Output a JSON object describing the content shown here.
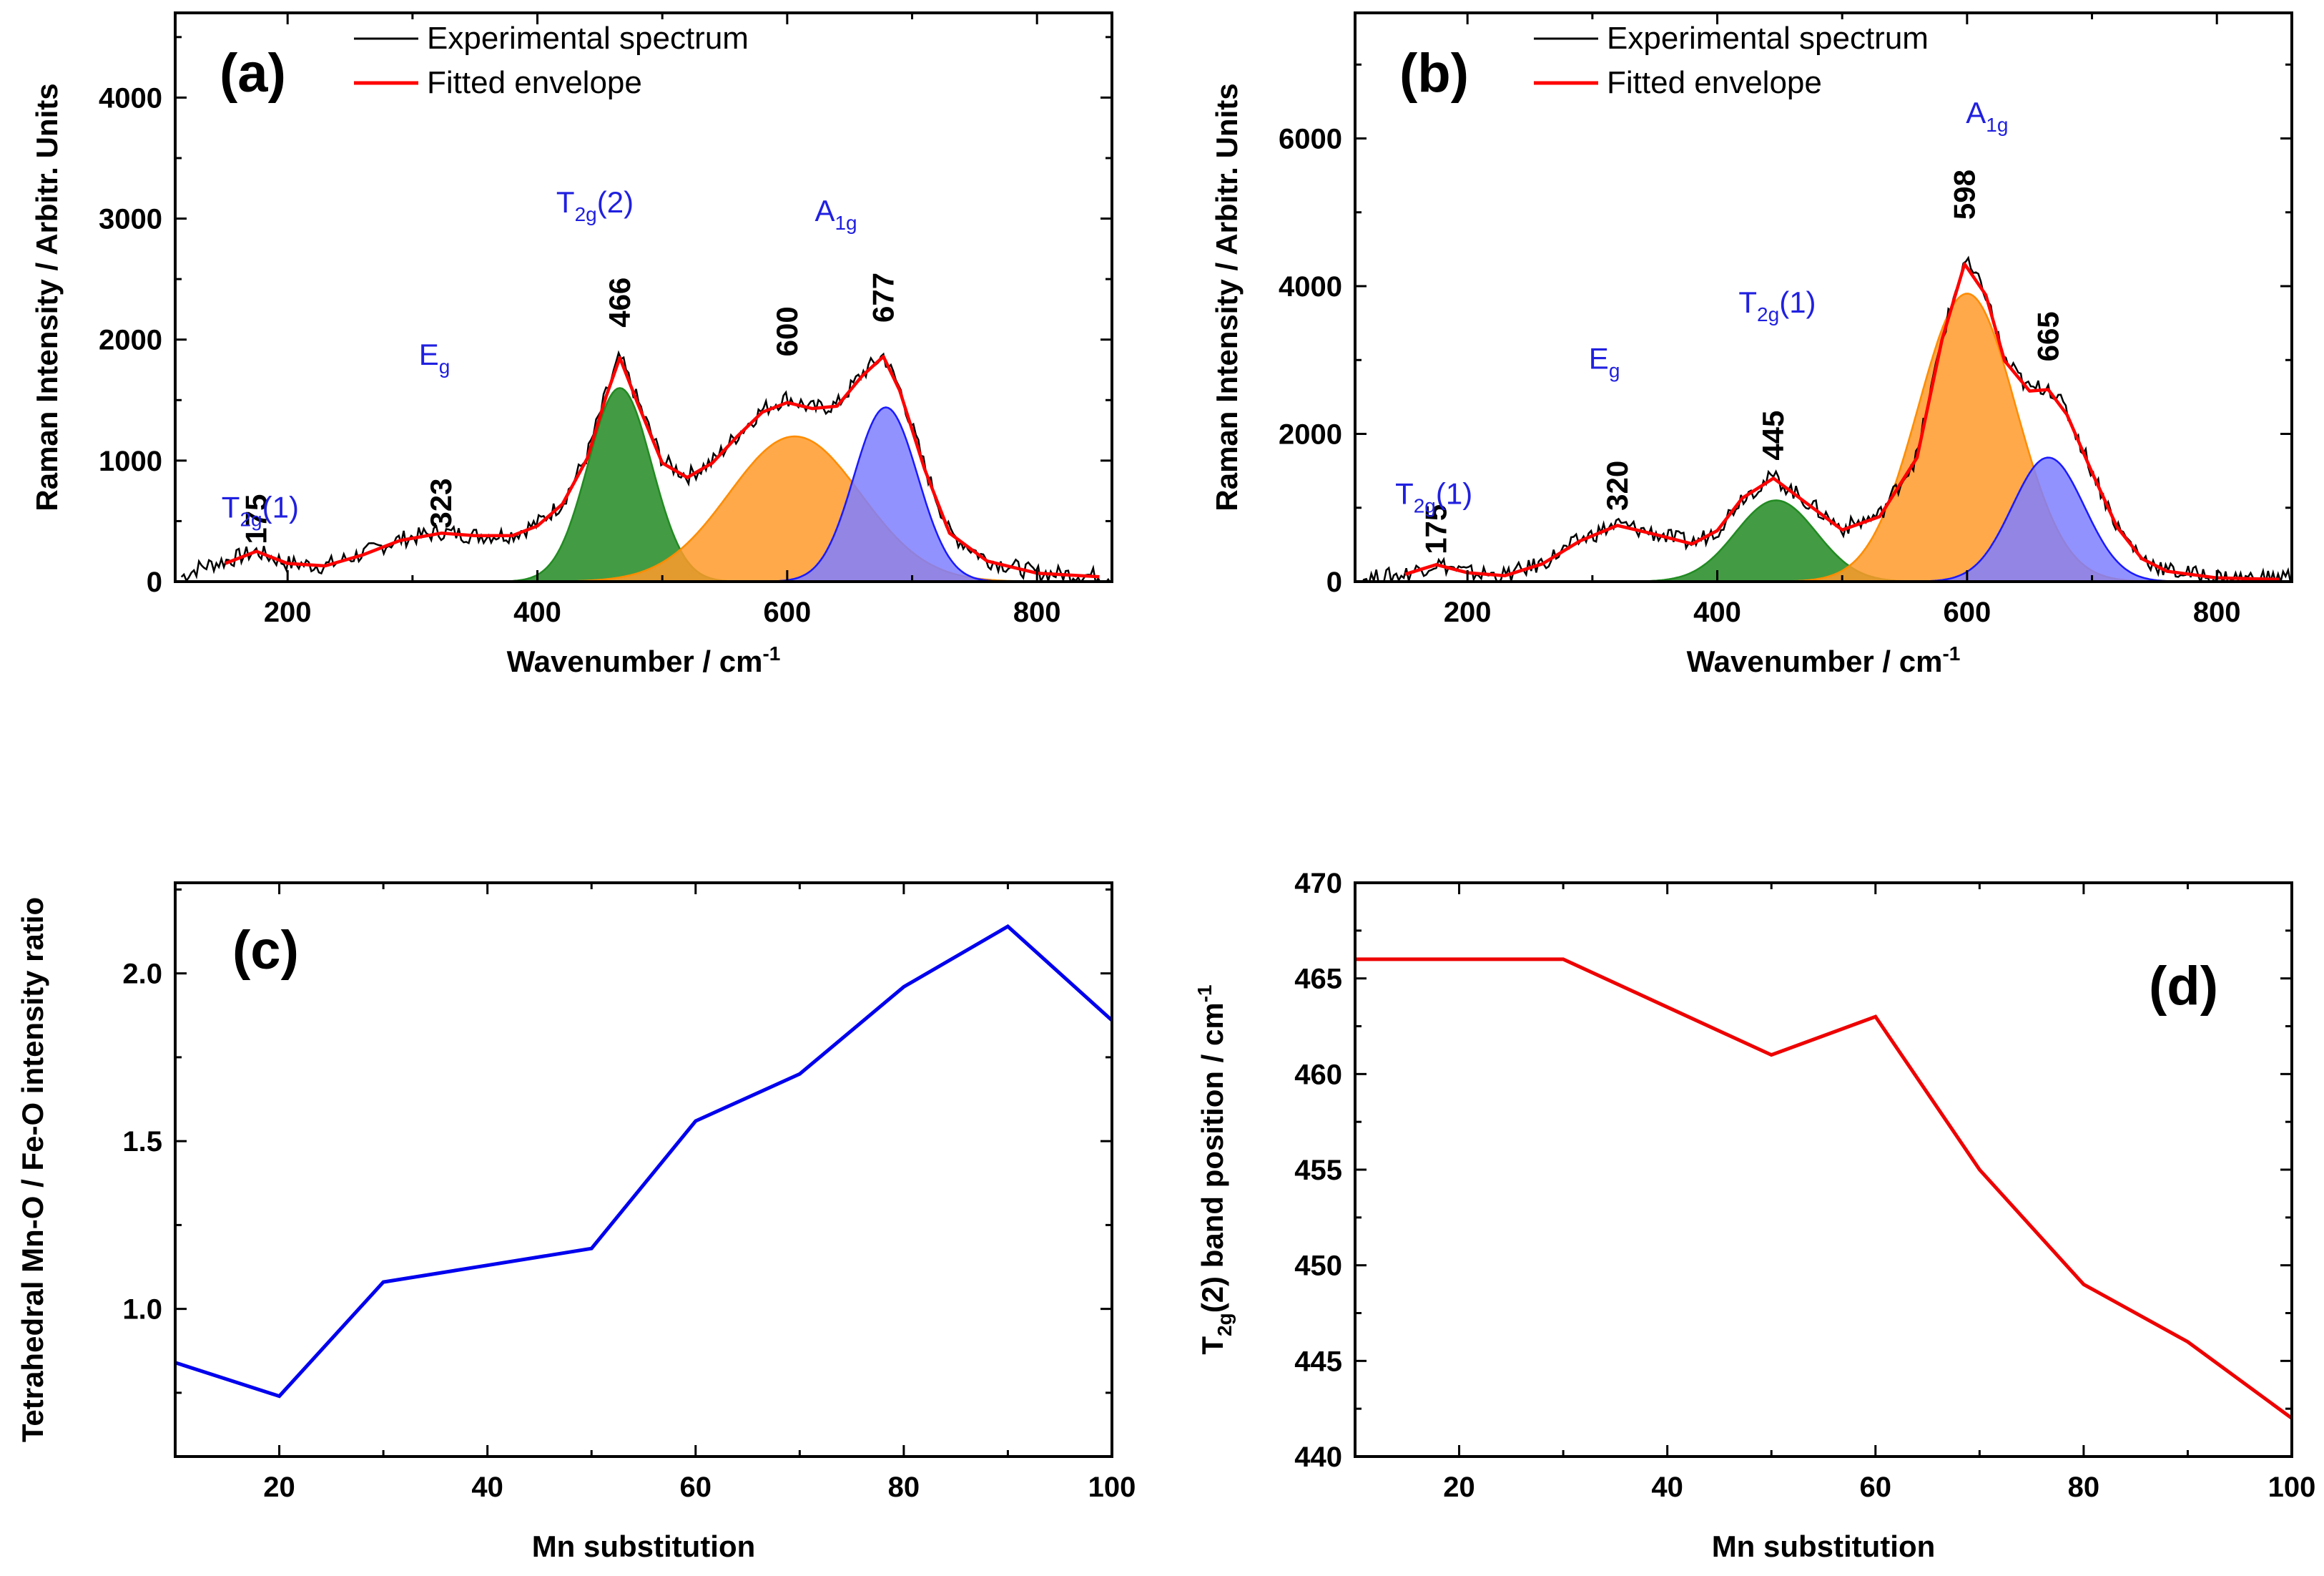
{
  "chart_data": [
    {
      "type": "line",
      "panel": "(a)",
      "xlabel": "Wavenumber / cm",
      "xlabel_sup": "-1",
      "ylabel": "Raman Intensity / Arbitr. Units",
      "xlim": [
        110,
        860
      ],
      "ylim": [
        0,
        4700
      ],
      "xticks": [
        200,
        400,
        600,
        800
      ],
      "yticks": [
        0,
        1000,
        2000,
        3000,
        4000
      ],
      "legend": [
        {
          "label": "Experimental spectrum",
          "color": "#000000"
        },
        {
          "label": "Fitted envelope",
          "color": "#ff0000"
        }
      ],
      "series": [
        {
          "name": "Experimental spectrum",
          "color": "#000000",
          "x": [
            115,
            130,
            150,
            175,
            200,
            230,
            260,
            290,
            323,
            350,
            380,
            400,
            420,
            440,
            455,
            466,
            480,
            500,
            520,
            540,
            560,
            580,
            600,
            620,
            640,
            660,
            677,
            690,
            710,
            730,
            760,
            800,
            830,
            860
          ],
          "y": [
            40,
            120,
            170,
            250,
            150,
            130,
            230,
            350,
            410,
            380,
            390,
            480,
            650,
            1050,
            1550,
            1860,
            1500,
            1000,
            870,
            990,
            1210,
            1420,
            1520,
            1430,
            1460,
            1720,
            1870,
            1600,
            950,
            400,
            180,
            70,
            60,
            40
          ]
        },
        {
          "name": "Fitted envelope",
          "color": "#ff0000",
          "x": [
            150,
            175,
            200,
            230,
            260,
            290,
            323,
            350,
            380,
            400,
            420,
            440,
            455,
            466,
            480,
            500,
            520,
            540,
            560,
            580,
            600,
            620,
            640,
            660,
            677,
            690,
            710,
            730,
            760,
            800,
            850
          ],
          "y": [
            150,
            250,
            150,
            130,
            220,
            340,
            400,
            380,
            380,
            460,
            640,
            1020,
            1530,
            1850,
            1480,
            980,
            860,
            980,
            1200,
            1400,
            1480,
            1430,
            1450,
            1700,
            1860,
            1580,
            930,
            400,
            170,
            70,
            40
          ]
        },
        {
          "name": "T2g(2) component",
          "color": "#228b22",
          "fill": "#228b22",
          "center": 466,
          "amplitude": 1600,
          "width": 30
        },
        {
          "name": "600 component",
          "color": "#ff8c00",
          "fill": "#ff9a2a",
          "center": 606,
          "amplitude": 1200,
          "width": 62
        },
        {
          "name": "A1g component",
          "color": "#1a1aff",
          "fill": "#7f7fff",
          "center": 679,
          "amplitude": 1440,
          "width": 30
        }
      ],
      "peak_labels": [
        "175",
        "323",
        "466",
        "600",
        "677"
      ],
      "peak_positions": [
        175,
        323,
        466,
        600,
        677
      ],
      "mode_labels": [
        {
          "main": "T",
          "sub": "2g",
          "rest": "(1)"
        },
        {
          "main": "E",
          "sub": "g",
          "rest": ""
        },
        {
          "main": "T",
          "sub": "2g",
          "rest": "(2)"
        },
        {
          "main": "A",
          "sub": "1g",
          "rest": ""
        }
      ]
    },
    {
      "type": "line",
      "panel": "(b)",
      "xlabel": "Wavenumber / cm",
      "xlabel_sup": "-1",
      "ylabel": "Raman Intensity / Arbitr. Units",
      "xlim": [
        110,
        860
      ],
      "ylim": [
        0,
        7700
      ],
      "xticks": [
        200,
        400,
        600,
        800
      ],
      "yticks": [
        0,
        2000,
        4000,
        6000
      ],
      "legend": [
        {
          "label": "Experimental spectrum",
          "color": "#000000"
        },
        {
          "label": "Fitted envelope",
          "color": "#ff0000"
        }
      ],
      "series": [
        {
          "name": "Experimental spectrum",
          "color": "#000000",
          "x": [
            115,
            130,
            150,
            175,
            200,
            230,
            260,
            290,
            320,
            350,
            380,
            400,
            420,
            445,
            470,
            500,
            530,
            560,
            580,
            598,
            615,
            630,
            650,
            665,
            680,
            700,
            720,
            740,
            760,
            800,
            830,
            860
          ],
          "y": [
            40,
            60,
            100,
            250,
            120,
            80,
            250,
            560,
            780,
            650,
            520,
            700,
            1150,
            1420,
            1100,
            720,
            900,
            1700,
            3300,
            4350,
            3900,
            3000,
            2600,
            2650,
            2300,
            1500,
            750,
            320,
            150,
            60,
            40,
            70
          ]
        },
        {
          "name": "Fitted envelope",
          "color": "#ff0000",
          "x": [
            150,
            175,
            200,
            230,
            260,
            290,
            320,
            350,
            380,
            400,
            420,
            445,
            470,
            500,
            530,
            560,
            580,
            598,
            615,
            630,
            650,
            665,
            680,
            700,
            720,
            740,
            760,
            800,
            850
          ],
          "y": [
            100,
            230,
            120,
            80,
            240,
            550,
            760,
            640,
            510,
            690,
            1130,
            1400,
            1080,
            700,
            880,
            1680,
            3280,
            4300,
            3880,
            2990,
            2580,
            2600,
            2260,
            1480,
            740,
            310,
            140,
            50,
            30
          ]
        },
        {
          "name": "T2g(1) component",
          "color": "#228b22",
          "fill": "#228b22",
          "center": 447,
          "amplitude": 1100,
          "width": 38
        },
        {
          "name": "A1g component",
          "color": "#ff8c00",
          "fill": "#ff9a2a",
          "center": 600,
          "amplitude": 3900,
          "width": 46
        },
        {
          "name": "665 component",
          "color": "#1a1aff",
          "fill": "#7f7fff",
          "center": 665,
          "amplitude": 1680,
          "width": 34
        }
      ],
      "peak_labels": [
        "175",
        "320",
        "445",
        "598",
        "665"
      ],
      "peak_positions": [
        175,
        320,
        445,
        598,
        665
      ],
      "mode_labels": [
        {
          "main": "T",
          "sub": "2g",
          "rest": "(1)"
        },
        {
          "main": "E",
          "sub": "g",
          "rest": ""
        },
        {
          "main": "T",
          "sub": "2g",
          "rest": "(1)"
        },
        {
          "main": "A",
          "sub": "1g",
          "rest": ""
        }
      ]
    },
    {
      "type": "line",
      "panel": "(c)",
      "xlabel": "Mn substitution",
      "ylabel": "Tetrahedral Mn-O / Fe-O intensity ratio",
      "xlim": [
        10,
        100
      ],
      "ylim": [
        0.56,
        2.27
      ],
      "xticks": [
        20,
        40,
        60,
        80,
        100
      ],
      "yticks": [
        1.0,
        1.5,
        2.0
      ],
      "ytick_labels": [
        "1.0",
        "1.5",
        "2.0"
      ],
      "series": [
        {
          "name": "ratio",
          "color": "#0000ee",
          "x": [
            10,
            20,
            30,
            40,
            50,
            60,
            70,
            80,
            90,
            100
          ],
          "y": [
            0.84,
            0.74,
            1.08,
            1.13,
            1.18,
            1.56,
            1.7,
            1.96,
            2.14,
            1.86
          ]
        }
      ]
    },
    {
      "type": "line",
      "panel": "(d)",
      "xlabel": "Mn substitution",
      "ylabel_main": "T",
      "ylabel_sub": "2g",
      "ylabel_rest": "(2) band position  / cm",
      "ylabel_sup": "-1",
      "xlim": [
        10,
        100
      ],
      "ylim": [
        440,
        470
      ],
      "xticks": [
        20,
        40,
        60,
        80,
        100
      ],
      "yticks": [
        440,
        445,
        450,
        455,
        460,
        465,
        470
      ],
      "series": [
        {
          "name": "position",
          "color": "#ee0000",
          "x": [
            10,
            20,
            30,
            40,
            50,
            60,
            70,
            80,
            90,
            100
          ],
          "y": [
            466,
            466,
            466,
            463.5,
            461,
            463,
            455,
            449,
            446,
            442
          ]
        }
      ]
    }
  ]
}
